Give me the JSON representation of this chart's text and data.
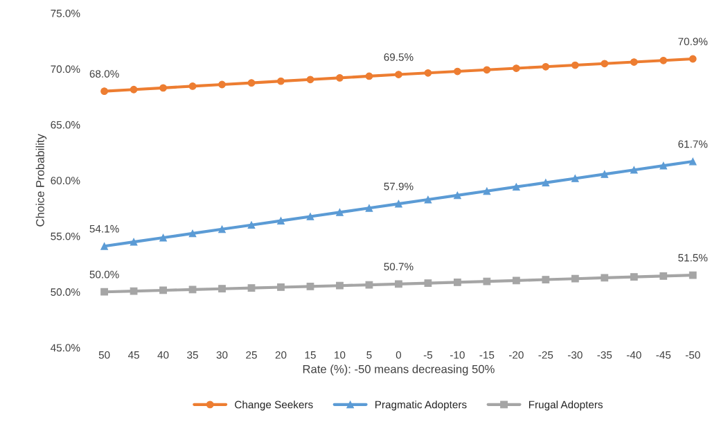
{
  "chart_data": {
    "type": "line",
    "xlabel": "Rate (%): -50 means decreasing 50%",
    "ylabel": "Choice Probability",
    "categories": [
      "50",
      "45",
      "40",
      "35",
      "30",
      "25",
      "20",
      "15",
      "10",
      "5",
      "0",
      "-5",
      "-10",
      "-15",
      "-20",
      "-25",
      "-30",
      "-35",
      "-40",
      "-45",
      "-50"
    ],
    "series": [
      {
        "name": "Change Seekers",
        "color": "#ed7d31",
        "marker": "circle",
        "values": [
          68.0,
          68.15,
          68.3,
          68.45,
          68.6,
          68.75,
          68.9,
          69.05,
          69.2,
          69.35,
          69.5,
          69.64,
          69.78,
          69.92,
          70.06,
          70.2,
          70.34,
          70.48,
          70.62,
          70.76,
          70.9
        ],
        "value_labels": [
          "68.0%",
          null,
          null,
          null,
          null,
          null,
          null,
          null,
          null,
          null,
          "69.5%",
          null,
          null,
          null,
          null,
          null,
          null,
          null,
          null,
          null,
          "70.9%"
        ]
      },
      {
        "name": "Pragmatic Adopters",
        "color": "#5b9bd5",
        "marker": "triangle",
        "values": [
          54.1,
          54.48,
          54.86,
          55.24,
          55.62,
          56.0,
          56.38,
          56.76,
          57.14,
          57.52,
          57.9,
          58.28,
          58.66,
          59.04,
          59.42,
          59.8,
          60.18,
          60.56,
          60.94,
          61.32,
          61.7
        ],
        "value_labels": [
          "54.1%",
          null,
          null,
          null,
          null,
          null,
          null,
          null,
          null,
          null,
          "57.9%",
          null,
          null,
          null,
          null,
          null,
          null,
          null,
          null,
          null,
          "61.7%"
        ]
      },
      {
        "name": "Frugal Adopters",
        "color": "#a5a5a5",
        "marker": "square",
        "values": [
          50.0,
          50.07,
          50.14,
          50.21,
          50.28,
          50.35,
          50.42,
          50.49,
          50.56,
          50.63,
          50.7,
          50.78,
          50.86,
          50.94,
          51.02,
          51.1,
          51.18,
          51.26,
          51.34,
          51.42,
          51.5
        ],
        "value_labels": [
          "50.0%",
          null,
          null,
          null,
          null,
          null,
          null,
          null,
          null,
          null,
          "50.7%",
          null,
          null,
          null,
          null,
          null,
          null,
          null,
          null,
          null,
          "51.5%"
        ]
      }
    ],
    "ylim": [
      45,
      75
    ],
    "yticks": [
      {
        "value": 45,
        "label": "45.0%"
      },
      {
        "value": 50,
        "label": "50.0%"
      },
      {
        "value": 55,
        "label": "55.0%"
      },
      {
        "value": 60,
        "label": "60.0%"
      },
      {
        "value": 65,
        "label": "65.0%"
      },
      {
        "value": 70,
        "label": "70.0%"
      },
      {
        "value": 75,
        "label": "75.0%"
      }
    ],
    "grid": false,
    "legend": "bottom",
    "line_style": "solid"
  }
}
